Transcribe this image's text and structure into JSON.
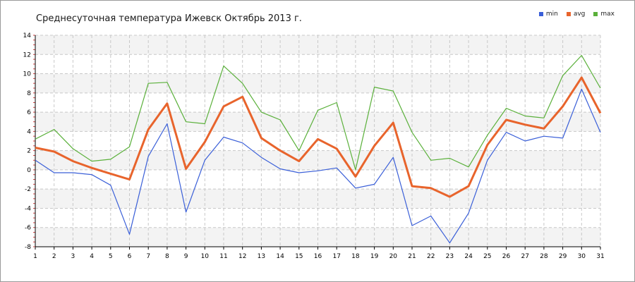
{
  "chart_data": {
    "type": "line",
    "title": "Среднесуточная температура Ижевск  Октябрь 2013 г.",
    "xlabel": "",
    "ylabel": "",
    "x": [
      1,
      2,
      3,
      4,
      5,
      6,
      7,
      8,
      9,
      10,
      11,
      12,
      13,
      14,
      15,
      16,
      17,
      18,
      19,
      20,
      21,
      22,
      23,
      24,
      25,
      26,
      27,
      28,
      29,
      30,
      31
    ],
    "ylim": [
      -8,
      14
    ],
    "yticks": [
      -8,
      -6,
      -4,
      -2,
      0,
      2,
      4,
      6,
      8,
      10,
      12,
      14
    ],
    "grid": true,
    "legend_position": "top-right",
    "series": [
      {
        "name": "min",
        "color": "#3a5fd8",
        "values": [
          1.0,
          -0.3,
          -0.3,
          -0.5,
          -1.6,
          -6.7,
          1.4,
          4.8,
          -4.4,
          1.0,
          3.4,
          2.8,
          1.3,
          0.1,
          -0.3,
          -0.1,
          0.2,
          -1.9,
          -1.5,
          1.3,
          -5.8,
          -4.8,
          -7.6,
          -4.5,
          1.0,
          3.9,
          3.0,
          3.5,
          3.3,
          8.4,
          3.9
        ]
      },
      {
        "name": "avg",
        "color": "#e8642c",
        "values": [
          2.3,
          1.9,
          0.9,
          0.2,
          -0.4,
          -1.0,
          4.2,
          6.9,
          0.1,
          2.9,
          6.6,
          7.6,
          3.3,
          2.0,
          0.9,
          3.2,
          2.2,
          -0.7,
          2.5,
          4.9,
          -1.7,
          -1.9,
          -2.8,
          -1.7,
          2.6,
          5.2,
          4.7,
          4.3,
          6.6,
          9.6,
          5.9
        ]
      },
      {
        "name": "max",
        "color": "#5ab03a",
        "values": [
          3.2,
          4.2,
          2.2,
          0.9,
          1.1,
          2.4,
          9.0,
          9.1,
          5.0,
          4.8,
          10.8,
          9.0,
          6.0,
          5.2,
          2.0,
          6.2,
          7.0,
          0.0,
          8.6,
          8.2,
          3.9,
          1.0,
          1.2,
          0.3,
          3.6,
          6.4,
          5.6,
          5.4,
          9.8,
          11.9,
          8.5
        ]
      }
    ]
  }
}
